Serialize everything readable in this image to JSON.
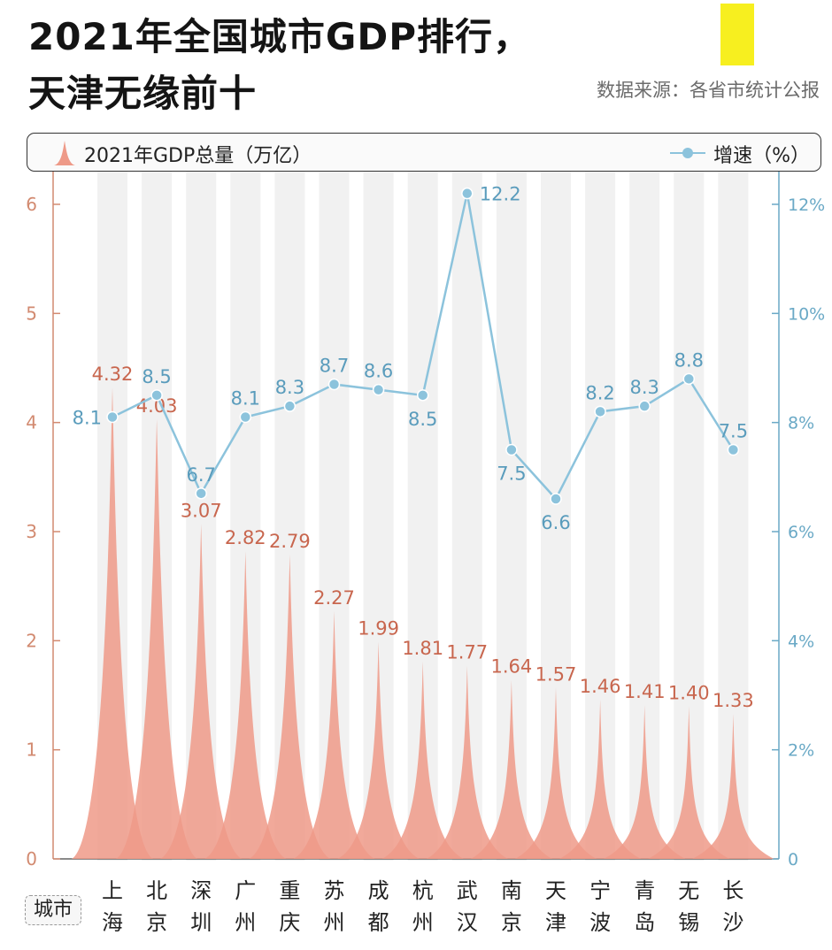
{
  "header": {
    "title_line1": "2021年全国城市GDP排行，",
    "title_line2": "天津无缘前十",
    "source": "数据来源：各省市统计公报"
  },
  "legend": {
    "gdp_label": "2021年GDP总量（万亿）",
    "growth_label": "增速（%）"
  },
  "category_label": "城市",
  "colors": {
    "gdp": "#ee9a88",
    "gdp_label": "#c8664e",
    "growth": "#8cc3dc",
    "growth_label": "#5a9cbc",
    "left_axis": "#d28a70",
    "right_axis": "#6aa9c6",
    "stripe": "#f1f1f1"
  },
  "chart_data": {
    "type": "bar",
    "categories": [
      "上海",
      "北京",
      "深圳",
      "广州",
      "重庆",
      "苏州",
      "成都",
      "杭州",
      "武汉",
      "南京",
      "天津",
      "宁波",
      "青岛",
      "无锡",
      "长沙"
    ],
    "series": [
      {
        "name": "2021年GDP总量（万亿）",
        "type": "bar",
        "axis": "left",
        "values": [
          4.32,
          4.03,
          3.07,
          2.82,
          2.79,
          2.27,
          1.99,
          1.81,
          1.77,
          1.64,
          1.57,
          1.46,
          1.41,
          1.4,
          1.33
        ],
        "labels": [
          "4.32",
          "4.03",
          "3.07",
          "2.82",
          "2.79",
          "2.27",
          "1.99",
          "1.81",
          "1.77",
          "1.64",
          "1.57",
          "1.46",
          "1.41",
          "1.40",
          "1.33"
        ]
      },
      {
        "name": "增速（%）",
        "type": "line",
        "axis": "right",
        "values": [
          8.1,
          8.5,
          6.7,
          8.1,
          8.3,
          8.7,
          8.6,
          8.5,
          12.2,
          7.5,
          6.6,
          8.2,
          8.3,
          8.8,
          7.5
        ],
        "labels": [
          "8.1",
          "8.5",
          "6.7",
          "8.1",
          "8.3",
          "8.7",
          "8.6",
          "8.5",
          "12.2",
          "7.5",
          "6.6",
          "8.2",
          "8.3",
          "8.8",
          "7.5"
        ]
      }
    ],
    "y_left": {
      "ylim": [
        0,
        6.3
      ],
      "ticks": [
        "0",
        "1",
        "2",
        "3",
        "4",
        "5",
        "6"
      ]
    },
    "y_right": {
      "ylim": [
        0,
        12.6
      ],
      "ticks": [
        "0",
        "2%",
        "4%",
        "6%",
        "8%",
        "10%",
        "12%"
      ]
    }
  }
}
